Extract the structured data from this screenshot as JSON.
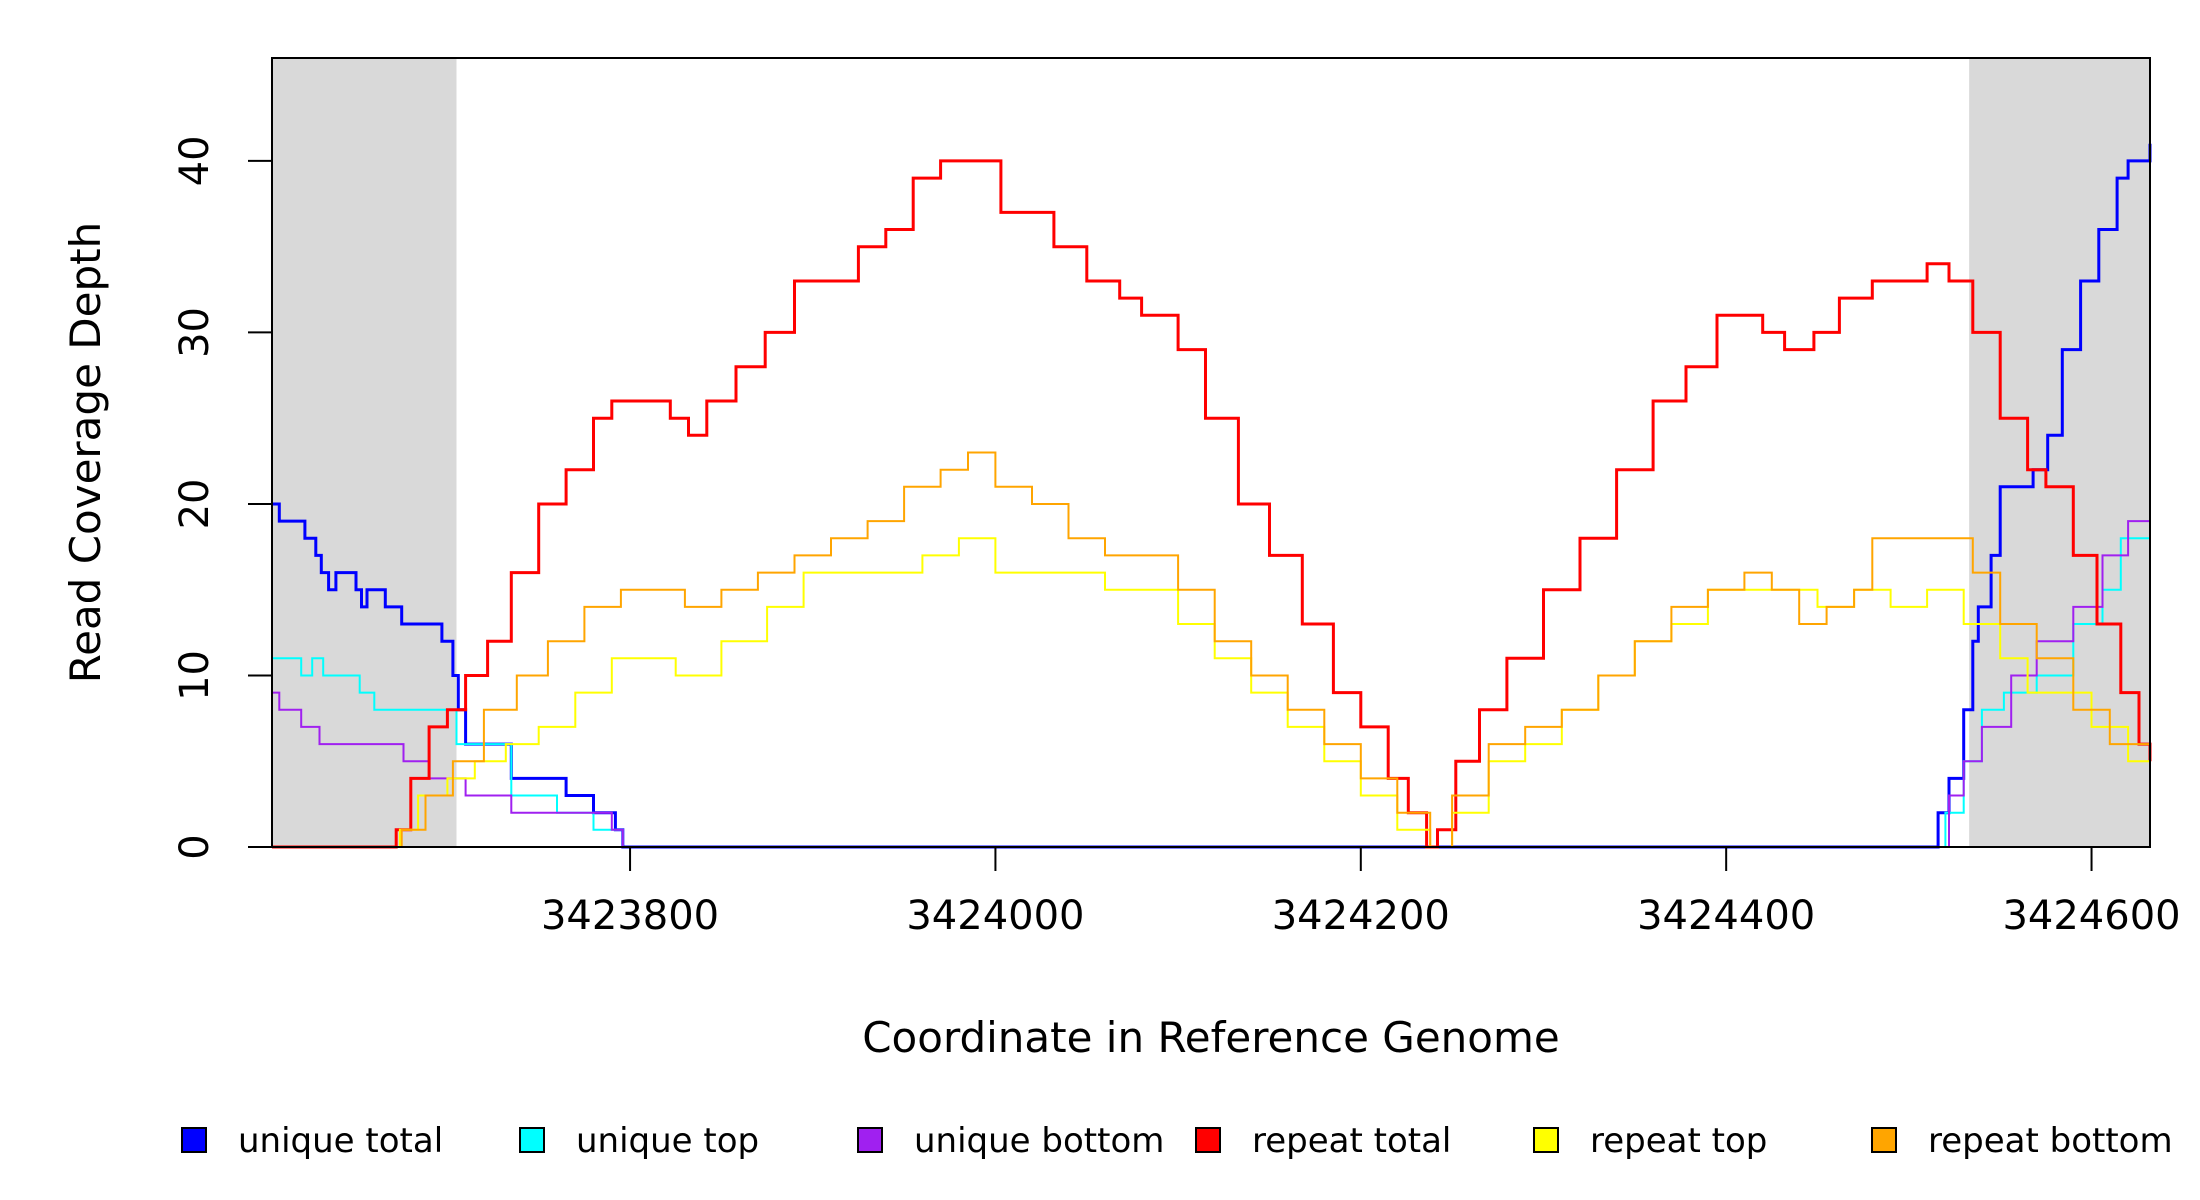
{
  "chart_data": {
    "type": "line",
    "title": "",
    "xlabel": "Coordinate in Reference Genome",
    "ylabel": "Read Coverage Depth",
    "xlim": [
      3423604,
      3424632
    ],
    "ylim": [
      0,
      46
    ],
    "x_ticks": [
      3423800,
      3424000,
      3424200,
      3424400,
      3424600
    ],
    "y_ticks": [
      0,
      10,
      20,
      30,
      40
    ],
    "shaded_regions": [
      {
        "from": 3423604,
        "to": 3423705,
        "color": "#d9d9d9"
      },
      {
        "from": 3424533,
        "to": 3424632,
        "color": "#d9d9d9"
      }
    ],
    "grid": false,
    "legend": "bottom",
    "series": [
      {
        "name": "unique total",
        "color": "#0000ff",
        "width": 3,
        "points": [
          [
            3423604,
            20
          ],
          [
            3423608,
            19
          ],
          [
            3423622,
            18
          ],
          [
            3423628,
            17
          ],
          [
            3423631,
            16
          ],
          [
            3423635,
            15
          ],
          [
            3423639,
            16
          ],
          [
            3423650,
            15
          ],
          [
            3423653,
            14
          ],
          [
            3423656,
            15
          ],
          [
            3423666,
            14
          ],
          [
            3423675,
            13
          ],
          [
            3423697,
            12
          ],
          [
            3423703,
            10
          ],
          [
            3423706,
            8
          ],
          [
            3423710,
            6
          ],
          [
            3423735,
            4
          ],
          [
            3423765,
            3
          ],
          [
            3423780,
            2
          ],
          [
            3423792,
            1
          ],
          [
            3423796,
            0
          ],
          [
            3424514,
            0
          ],
          [
            3424516,
            2
          ],
          [
            3424522,
            4
          ],
          [
            3424530,
            8
          ],
          [
            3424535,
            12
          ],
          [
            3424538,
            14
          ],
          [
            3424545,
            17
          ],
          [
            3424550,
            21
          ],
          [
            3424560,
            21
          ],
          [
            3424568,
            22
          ],
          [
            3424576,
            24
          ],
          [
            3424584,
            29
          ],
          [
            3424594,
            33
          ],
          [
            3424604,
            36
          ],
          [
            3424614,
            39
          ],
          [
            3424620,
            40
          ],
          [
            3424632,
            41
          ]
        ]
      },
      {
        "name": "unique top",
        "color": "#00ffff",
        "width": 2,
        "points": [
          [
            3423604,
            11
          ],
          [
            3423620,
            10
          ],
          [
            3423626,
            11
          ],
          [
            3423632,
            10
          ],
          [
            3423652,
            9
          ],
          [
            3423660,
            8
          ],
          [
            3423700,
            8
          ],
          [
            3423705,
            6
          ],
          [
            3423735,
            3
          ],
          [
            3423760,
            2
          ],
          [
            3423780,
            1
          ],
          [
            3423796,
            0
          ],
          [
            3424516,
            0
          ],
          [
            3424520,
            2
          ],
          [
            3424530,
            5
          ],
          [
            3424540,
            8
          ],
          [
            3424552,
            9
          ],
          [
            3424570,
            10
          ],
          [
            3424590,
            13
          ],
          [
            3424606,
            15
          ],
          [
            3424616,
            18
          ],
          [
            3424632,
            20
          ]
        ]
      },
      {
        "name": "unique bottom",
        "color": "#a020f0",
        "width": 2,
        "points": [
          [
            3423604,
            9
          ],
          [
            3423608,
            8
          ],
          [
            3423620,
            7
          ],
          [
            3423630,
            6
          ],
          [
            3423645,
            6
          ],
          [
            3423676,
            5
          ],
          [
            3423690,
            4
          ],
          [
            3423710,
            3
          ],
          [
            3423735,
            2
          ],
          [
            3423770,
            2
          ],
          [
            3423790,
            1
          ],
          [
            3423796,
            0
          ],
          [
            3424516,
            0
          ],
          [
            3424522,
            3
          ],
          [
            3424530,
            5
          ],
          [
            3424540,
            7
          ],
          [
            3424556,
            10
          ],
          [
            3424570,
            12
          ],
          [
            3424590,
            14
          ],
          [
            3424606,
            17
          ],
          [
            3424620,
            19
          ],
          [
            3424632,
            21
          ]
        ]
      },
      {
        "name": "repeat total",
        "color": "#ff0000",
        "width": 3,
        "points": [
          [
            3423604,
            0
          ],
          [
            3423668,
            0
          ],
          [
            3423672,
            1
          ],
          [
            3423680,
            4
          ],
          [
            3423690,
            7
          ],
          [
            3423700,
            8
          ],
          [
            3423710,
            10
          ],
          [
            3423722,
            12
          ],
          [
            3423735,
            16
          ],
          [
            3423750,
            20
          ],
          [
            3423765,
            22
          ],
          [
            3423780,
            25
          ],
          [
            3423790,
            26
          ],
          [
            3423806,
            26
          ],
          [
            3423822,
            25
          ],
          [
            3423832,
            24
          ],
          [
            3423842,
            26
          ],
          [
            3423858,
            28
          ],
          [
            3423874,
            30
          ],
          [
            3423890,
            33
          ],
          [
            3423910,
            33
          ],
          [
            3423925,
            35
          ],
          [
            3423940,
            36
          ],
          [
            3423955,
            39
          ],
          [
            3423970,
            40
          ],
          [
            3423980,
            40
          ],
          [
            3423993,
            40
          ],
          [
            3424003,
            37
          ],
          [
            3424016,
            37
          ],
          [
            3424032,
            35
          ],
          [
            3424050,
            33
          ],
          [
            3424068,
            32
          ],
          [
            3424080,
            31
          ],
          [
            3424100,
            29
          ],
          [
            3424115,
            25
          ],
          [
            3424133,
            20
          ],
          [
            3424150,
            17
          ],
          [
            3424168,
            13
          ],
          [
            3424185,
            9
          ],
          [
            3424200,
            7
          ],
          [
            3424215,
            4
          ],
          [
            3424226,
            2
          ],
          [
            3424236,
            0
          ],
          [
            3424242,
            1
          ],
          [
            3424252,
            5
          ],
          [
            3424265,
            8
          ],
          [
            3424280,
            11
          ],
          [
            3424300,
            15
          ],
          [
            3424320,
            18
          ],
          [
            3424340,
            22
          ],
          [
            3424360,
            26
          ],
          [
            3424378,
            28
          ],
          [
            3424395,
            31
          ],
          [
            3424410,
            31
          ],
          [
            3424420,
            30
          ],
          [
            3424432,
            29
          ],
          [
            3424448,
            30
          ],
          [
            3424462,
            32
          ],
          [
            3424480,
            33
          ],
          [
            3424496,
            33
          ],
          [
            3424510,
            34
          ],
          [
            3424522,
            33
          ],
          [
            3424535,
            30
          ],
          [
            3424550,
            25
          ],
          [
            3424565,
            22
          ],
          [
            3424575,
            21
          ],
          [
            3424590,
            17
          ],
          [
            3424603,
            13
          ],
          [
            3424616,
            9
          ],
          [
            3424626,
            6
          ],
          [
            3424632,
            5
          ]
        ]
      },
      {
        "name": "repeat top",
        "color": "#ffff00",
        "width": 2,
        "points": [
          [
            3423604,
            0
          ],
          [
            3423668,
            0
          ],
          [
            3423674,
            1
          ],
          [
            3423684,
            3
          ],
          [
            3423700,
            4
          ],
          [
            3423715,
            5
          ],
          [
            3423732,
            6
          ],
          [
            3423750,
            7
          ],
          [
            3423770,
            9
          ],
          [
            3423790,
            11
          ],
          [
            3423808,
            11
          ],
          [
            3423825,
            10
          ],
          [
            3423850,
            12
          ],
          [
            3423875,
            14
          ],
          [
            3423895,
            16
          ],
          [
            3423915,
            16
          ],
          [
            3423935,
            16
          ],
          [
            3423960,
            17
          ],
          [
            3423980,
            18
          ],
          [
            3424000,
            16
          ],
          [
            3424020,
            16
          ],
          [
            3424040,
            16
          ],
          [
            3424060,
            15
          ],
          [
            3424080,
            15
          ],
          [
            3424100,
            13
          ],
          [
            3424120,
            11
          ],
          [
            3424140,
            9
          ],
          [
            3424160,
            7
          ],
          [
            3424180,
            5
          ],
          [
            3424200,
            3
          ],
          [
            3424220,
            1
          ],
          [
            3424238,
            0
          ],
          [
            3424250,
            2
          ],
          [
            3424270,
            5
          ],
          [
            3424290,
            6
          ],
          [
            3424310,
            8
          ],
          [
            3424330,
            10
          ],
          [
            3424350,
            12
          ],
          [
            3424370,
            13
          ],
          [
            3424390,
            15
          ],
          [
            3424410,
            15
          ],
          [
            3424430,
            15
          ],
          [
            3424450,
            14
          ],
          [
            3424470,
            15
          ],
          [
            3424490,
            14
          ],
          [
            3424510,
            15
          ],
          [
            3424530,
            13
          ],
          [
            3424550,
            11
          ],
          [
            3424565,
            9
          ],
          [
            3424580,
            9
          ],
          [
            3424600,
            7
          ],
          [
            3424620,
            5
          ],
          [
            3424632,
            3
          ]
        ]
      },
      {
        "name": "repeat bottom",
        "color": "#ffa500",
        "width": 2,
        "points": [
          [
            3423604,
            0
          ],
          [
            3423668,
            0
          ],
          [
            3423675,
            1
          ],
          [
            3423688,
            3
          ],
          [
            3423703,
            5
          ],
          [
            3423720,
            8
          ],
          [
            3423738,
            10
          ],
          [
            3423755,
            12
          ],
          [
            3423775,
            14
          ],
          [
            3423795,
            15
          ],
          [
            3423812,
            15
          ],
          [
            3423830,
            14
          ],
          [
            3423850,
            15
          ],
          [
            3423870,
            16
          ],
          [
            3423890,
            17
          ],
          [
            3423910,
            18
          ],
          [
            3423930,
            19
          ],
          [
            3423950,
            21
          ],
          [
            3423970,
            22
          ],
          [
            3423985,
            23
          ],
          [
            3424000,
            21
          ],
          [
            3424020,
            20
          ],
          [
            3424040,
            18
          ],
          [
            3424060,
            17
          ],
          [
            3424080,
            17
          ],
          [
            3424100,
            15
          ],
          [
            3424120,
            12
          ],
          [
            3424140,
            10
          ],
          [
            3424160,
            8
          ],
          [
            3424180,
            6
          ],
          [
            3424200,
            4
          ],
          [
            3424220,
            2
          ],
          [
            3424238,
            0
          ],
          [
            3424250,
            3
          ],
          [
            3424270,
            6
          ],
          [
            3424290,
            7
          ],
          [
            3424310,
            8
          ],
          [
            3424330,
            10
          ],
          [
            3424350,
            12
          ],
          [
            3424370,
            14
          ],
          [
            3424390,
            15
          ],
          [
            3424410,
            16
          ],
          [
            3424425,
            15
          ],
          [
            3424440,
            13
          ],
          [
            3424455,
            14
          ],
          [
            3424470,
            15
          ],
          [
            3424480,
            18
          ],
          [
            3424500,
            18
          ],
          [
            3424520,
            18
          ],
          [
            3424535,
            16
          ],
          [
            3424550,
            13
          ],
          [
            3424570,
            11
          ],
          [
            3424590,
            8
          ],
          [
            3424610,
            6
          ],
          [
            3424632,
            3
          ]
        ]
      }
    ]
  }
}
